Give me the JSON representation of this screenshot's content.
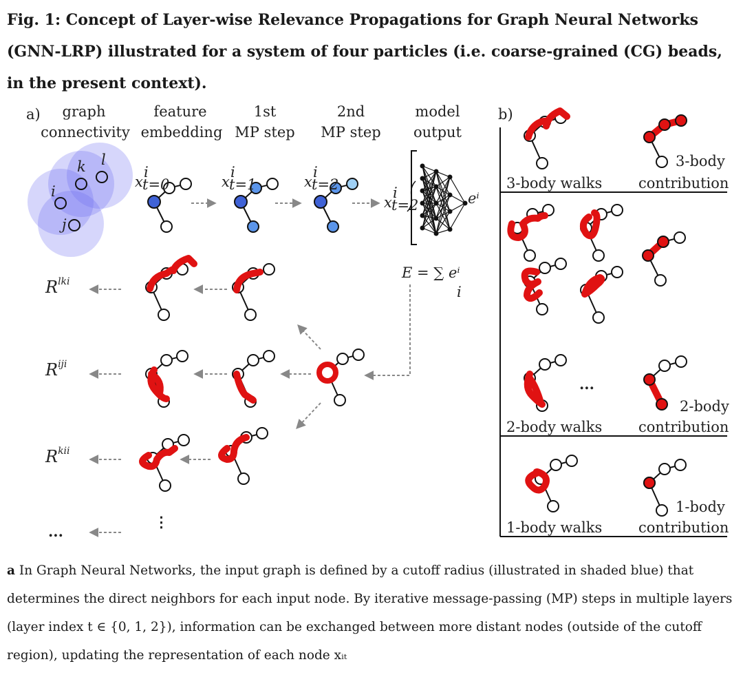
{
  "caption": {
    "title": "Fig. 1: Concept of Layer-wise Relevance Propagations for Graph Neural Networks (GNN-LRP) illustrated for a system of four particles (i.e. coarse-grained (CG) beads, in the present context).",
    "body_bold": "a",
    "body_text": " In Graph Neural Networks, the input graph is defined by a cutoff radius (illustrated in shaded blue) that determines the direct neighbors for each input node. By iterative message-passing (MP) steps in multiple layers (layer index t ∈ {0, 1, 2}), information can be exchanged between more distant nodes (outside of the cutoff region), updating the representation of each node xᵢₜ"
  },
  "panel_a": {
    "label": "a)",
    "headers": [
      {
        "line1": "graph",
        "line2": "connectivity"
      },
      {
        "line1": "feature",
        "line2": "embedding"
      },
      {
        "line1": "1st",
        "line2": "MP step"
      },
      {
        "line1": "2nd",
        "line2": "MP step"
      },
      {
        "line1": "model",
        "line2": "output"
      }
    ],
    "node_labels": [
      "k",
      "l",
      "i",
      "j"
    ],
    "x_labels": [
      "x",
      "x",
      "x",
      "x"
    ],
    "x_subs": [
      "t=0",
      "t=1",
      "t=2",
      "t=2"
    ],
    "x_sup": "i",
    "energy": "E = ∑ eⁱ",
    "energy_sum_index": "i",
    "output_label": "eⁱ",
    "relevance_labels": [
      {
        "base": "R",
        "sup": "lki"
      },
      {
        "base": "R",
        "sup": "iji"
      },
      {
        "base": "R",
        "sup": "kii"
      },
      {
        "base": "...",
        "sup": ""
      }
    ],
    "vdots": "⋮"
  },
  "panel_b": {
    "label": "b)",
    "sections": [
      {
        "walks": "3-body walks",
        "contrib_line1": "3-body",
        "contrib_line2": "contribution"
      },
      {
        "walks": "2-body walks",
        "contrib_line1": "2-body",
        "contrib_line2": "contribution"
      },
      {
        "walks": "1-body walks",
        "contrib_line1": "1-body",
        "contrib_line2": "contribution"
      }
    ],
    "ellipsis": "..."
  },
  "colors": {
    "walk_red": "#e01212",
    "node_blue": "#3f7de0",
    "node_light_blue": "#9fd0f5",
    "cutoff_shade": "#6a6af0"
  }
}
